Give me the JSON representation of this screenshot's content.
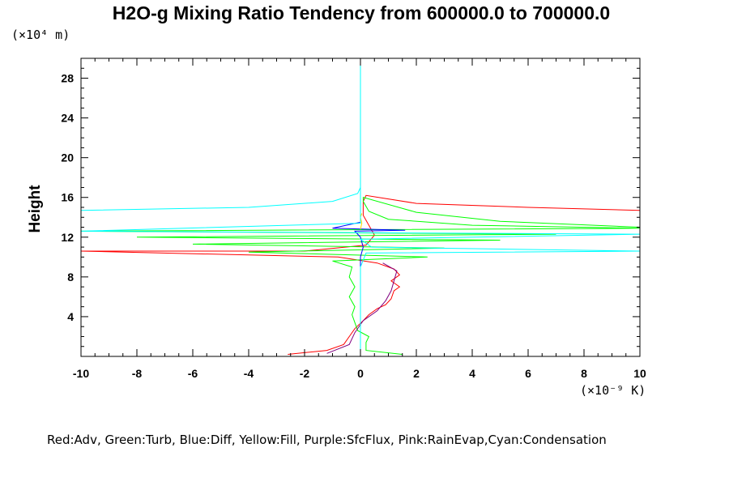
{
  "chart_data": {
    "type": "line",
    "title": "H2O-g Mixing Ratio Tendency from 600000.0 to 700000.0",
    "ylabel": "Height",
    "y_unit": "(×10⁴ m)",
    "x_unit": "(×10⁻⁹ K)",
    "xlim": [
      -10,
      10
    ],
    "ylim": [
      0,
      30
    ],
    "x_ticks": [
      -10,
      -8,
      -6,
      -4,
      -2,
      0,
      2,
      4,
      6,
      8,
      10
    ],
    "y_ticks": [
      4,
      8,
      12,
      16,
      20,
      24,
      28
    ],
    "x_tick_labels": [
      "-10",
      "-8",
      "-6",
      "-4",
      "-2",
      "0",
      "2",
      "4",
      "6",
      "8",
      "10"
    ],
    "y_tick_labels": [
      "4",
      "8",
      "12",
      "16",
      "20",
      "24",
      "28"
    ],
    "legend_text": "Red:Adv, Green:Turb, Blue:Diff, Yellow:Fill, Purple:SfcFlux, Pink:RainEvap,Cyan:Condensation",
    "grid": false,
    "series": [
      {
        "color": "#ff0000",
        "points": [
          [
            -2.6,
            0.2
          ],
          [
            -1.2,
            0.6
          ],
          [
            -0.6,
            1.2
          ],
          [
            -0.4,
            2.0
          ],
          [
            -0.2,
            2.8
          ],
          [
            0.1,
            3.6
          ],
          [
            0.3,
            4.2
          ],
          [
            0.6,
            4.8
          ],
          [
            0.9,
            5.2
          ],
          [
            1.1,
            5.8
          ],
          [
            1.2,
            6.6
          ],
          [
            1.4,
            7.0
          ],
          [
            1.1,
            7.6
          ],
          [
            1.4,
            8.2
          ],
          [
            1.2,
            8.8
          ],
          [
            0.6,
            9.4
          ],
          [
            -0.8,
            10.0
          ],
          [
            -10,
            10.6
          ],
          [
            -2,
            10.6
          ],
          [
            0.2,
            11.2
          ],
          [
            0.5,
            12.2
          ],
          [
            0.3,
            13.2
          ],
          [
            0.1,
            14.2
          ],
          [
            0.1,
            15.6
          ],
          [
            0.2,
            16.2
          ],
          [
            2,
            15.4
          ],
          [
            6,
            15.0
          ],
          [
            10,
            14.7
          ]
        ]
      },
      {
        "color": "#00ff00",
        "points": [
          [
            1.5,
            0.2
          ],
          [
            0.2,
            0.6
          ],
          [
            0.2,
            1.4
          ],
          [
            0.3,
            2.0
          ],
          [
            -0.1,
            2.6
          ],
          [
            -0.2,
            3.4
          ],
          [
            -0.3,
            4.2
          ],
          [
            -0.2,
            5.0
          ],
          [
            -0.4,
            6.0
          ],
          [
            -0.2,
            7.0
          ],
          [
            -0.4,
            8.0
          ],
          [
            -0.3,
            9.0
          ],
          [
            -1,
            9.6
          ],
          [
            2.4,
            10.0
          ],
          [
            -4,
            10.5
          ],
          [
            3,
            10.9
          ],
          [
            -6,
            11.3
          ],
          [
            5,
            11.7
          ],
          [
            -8,
            12.0
          ],
          [
            7,
            12.3
          ],
          [
            -10,
            12.6
          ],
          [
            10,
            12.9
          ],
          [
            4,
            13.2
          ],
          [
            1,
            13.8
          ],
          [
            0.3,
            14.6
          ],
          [
            0.1,
            15.6
          ],
          [
            0.1,
            16.0
          ],
          [
            2,
            14.5
          ],
          [
            5,
            13.6
          ],
          [
            10,
            13.0
          ]
        ]
      },
      {
        "color": "#0000ff",
        "points": [
          [
            0,
            2
          ],
          [
            0,
            10
          ],
          [
            0.1,
            11
          ],
          [
            0,
            12
          ],
          [
            -0.2,
            12.6
          ],
          [
            1.6,
            12.7
          ],
          [
            -1,
            12.9
          ],
          [
            0,
            13.5
          ],
          [
            0,
            14.6
          ]
        ]
      },
      {
        "color": "#ffd700",
        "points": [
          [
            0,
            12.8
          ],
          [
            0.05,
            13.4
          ],
          [
            0,
            14.0
          ],
          [
            0.05,
            14.4
          ]
        ]
      },
      {
        "color": "#800080",
        "points": [
          [
            -1.2,
            0.3
          ],
          [
            -0.4,
            1.2
          ],
          [
            -0.2,
            2.4
          ],
          [
            0.1,
            3.6
          ],
          [
            0.6,
            4.6
          ],
          [
            0.9,
            5.6
          ],
          [
            1.1,
            6.6
          ],
          [
            1.2,
            7.6
          ],
          [
            1.3,
            8.6
          ],
          [
            0.8,
            9.4
          ]
        ]
      },
      {
        "color": "#00ffff",
        "points": [
          [
            -10,
            14.7
          ],
          [
            -4,
            15.0
          ],
          [
            -1,
            15.6
          ],
          [
            -0.1,
            16.4
          ],
          [
            0,
            17.0
          ],
          [
            0,
            30
          ],
          [
            0,
            17.0
          ],
          [
            0,
            13.4
          ],
          [
            -10,
            12.6
          ],
          [
            10,
            12.3
          ],
          [
            0,
            11.8
          ],
          [
            0.4,
            11.0
          ],
          [
            10,
            10.6
          ],
          [
            0.2,
            10.4
          ],
          [
            0,
            9.0
          ],
          [
            0,
            0
          ]
        ]
      }
    ]
  }
}
